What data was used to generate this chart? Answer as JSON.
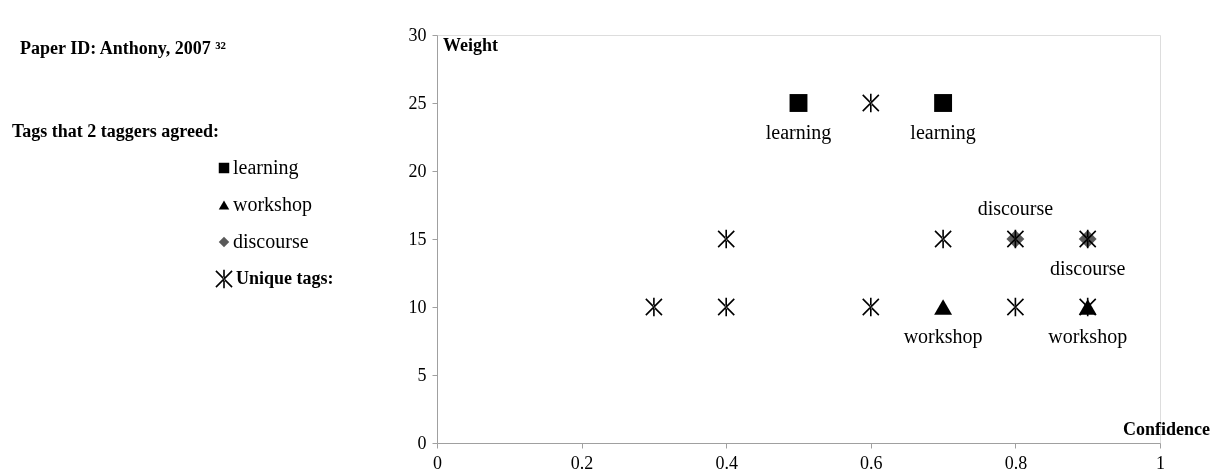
{
  "chart_data": {
    "type": "scatter",
    "title": "Paper ID: Anthony, 2007 ³²",
    "xlabel": "Confidence",
    "ylabel": "Weight",
    "legend_title": "Tags that 2 taggers agreed:",
    "legend": "left",
    "xlim": [
      0,
      1
    ],
    "xticks": [
      0,
      0.2,
      0.4,
      0.6,
      0.8,
      1
    ],
    "ylim": [
      0,
      30
    ],
    "yticks": [
      0,
      5,
      10,
      15,
      20,
      25,
      30
    ],
    "grid": false,
    "series": [
      {
        "name": "learning",
        "color": "#000000",
        "marker": "square",
        "x": [
          0.5,
          0.7
        ],
        "values": [
          25,
          25
        ]
      },
      {
        "name": "workshop",
        "color": "#000000",
        "marker": "triangle",
        "x": [
          0.7,
          0.9
        ],
        "values": [
          10,
          10
        ]
      },
      {
        "name": "discourse",
        "color": "#595959",
        "marker": "diamond",
        "x": [
          0.8,
          0.9
        ],
        "values": [
          15,
          15
        ]
      },
      {
        "name": "Unique tags:",
        "color": "#000000",
        "marker": "cross",
        "x": [
          0.6,
          0.4,
          0.7,
          0.8,
          0.9,
          0.3,
          0.4,
          0.6,
          0.8,
          0.9
        ],
        "values": [
          25,
          15,
          15,
          15,
          15,
          10,
          10,
          10,
          10,
          10
        ]
      }
    ],
    "annotations": [
      {
        "text": "learning",
        "x": 0.5,
        "y": 25
      },
      {
        "text": "learning",
        "x": 0.7,
        "y": 25
      },
      {
        "text": "discourse",
        "x": 0.8,
        "y": 15
      },
      {
        "text": "discourse",
        "x": 0.9,
        "y": 15
      },
      {
        "text": "workshop",
        "x": 0.7,
        "y": 10
      },
      {
        "text": "workshop",
        "x": 0.9,
        "y": 10
      }
    ]
  }
}
